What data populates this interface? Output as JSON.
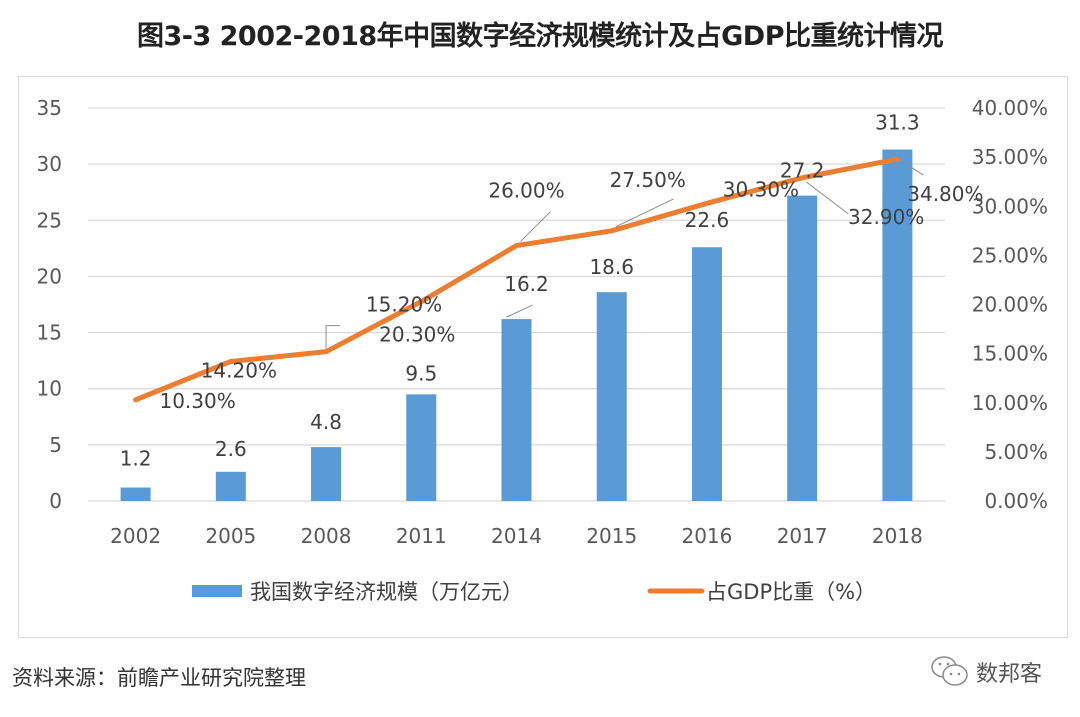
{
  "title": "图3-3 2002-2018年中国数字经济规模统计及占GDP比重统计情况",
  "source": "资料来源：前瞻产业研究院整理",
  "brand": "数邦客",
  "colors": {
    "bar": "#5b9bd5",
    "line": "#ed7d31",
    "grid": "#d9d9d9",
    "text": "#595959"
  },
  "chart_data": {
    "type": "bar+line",
    "title": "图3-3 2002-2018年中国数字经济规模统计及占GDP比重统计情况",
    "categories": [
      "2002",
      "2005",
      "2008",
      "2011",
      "2014",
      "2015",
      "2016",
      "2017",
      "2018"
    ],
    "series": [
      {
        "name": "我国数字经济规模（万亿元）",
        "type": "bar",
        "axis": "left",
        "values": [
          1.2,
          2.6,
          4.8,
          9.5,
          16.2,
          18.6,
          22.6,
          27.2,
          31.3
        ],
        "labels": [
          "1.2",
          "2.6",
          "4.8",
          "9.5",
          "16.2",
          "18.6",
          "22.6",
          "27.2",
          "31.3"
        ]
      },
      {
        "name": "占GDP比重（%）",
        "type": "line",
        "axis": "right",
        "values": [
          10.3,
          14.2,
          15.2,
          20.3,
          26.0,
          27.5,
          30.3,
          32.9,
          34.8
        ],
        "labels": [
          "10.30%",
          "14.20%",
          "15.20%",
          "20.30%",
          "26.00%",
          "27.50%",
          "30.30%",
          "32.90%",
          "34.80%"
        ]
      }
    ],
    "ylim": [
      0,
      35
    ],
    "y_ticks": [
      "0",
      "5",
      "10",
      "15",
      "20",
      "25",
      "30",
      "35"
    ],
    "y2lim": [
      0,
      40
    ],
    "y2_ticks": [
      "0.00%",
      "5.00%",
      "10.00%",
      "15.00%",
      "20.00%",
      "25.00%",
      "30.00%",
      "35.00%",
      "40.00%"
    ],
    "grid": true,
    "legend": "bottom"
  }
}
